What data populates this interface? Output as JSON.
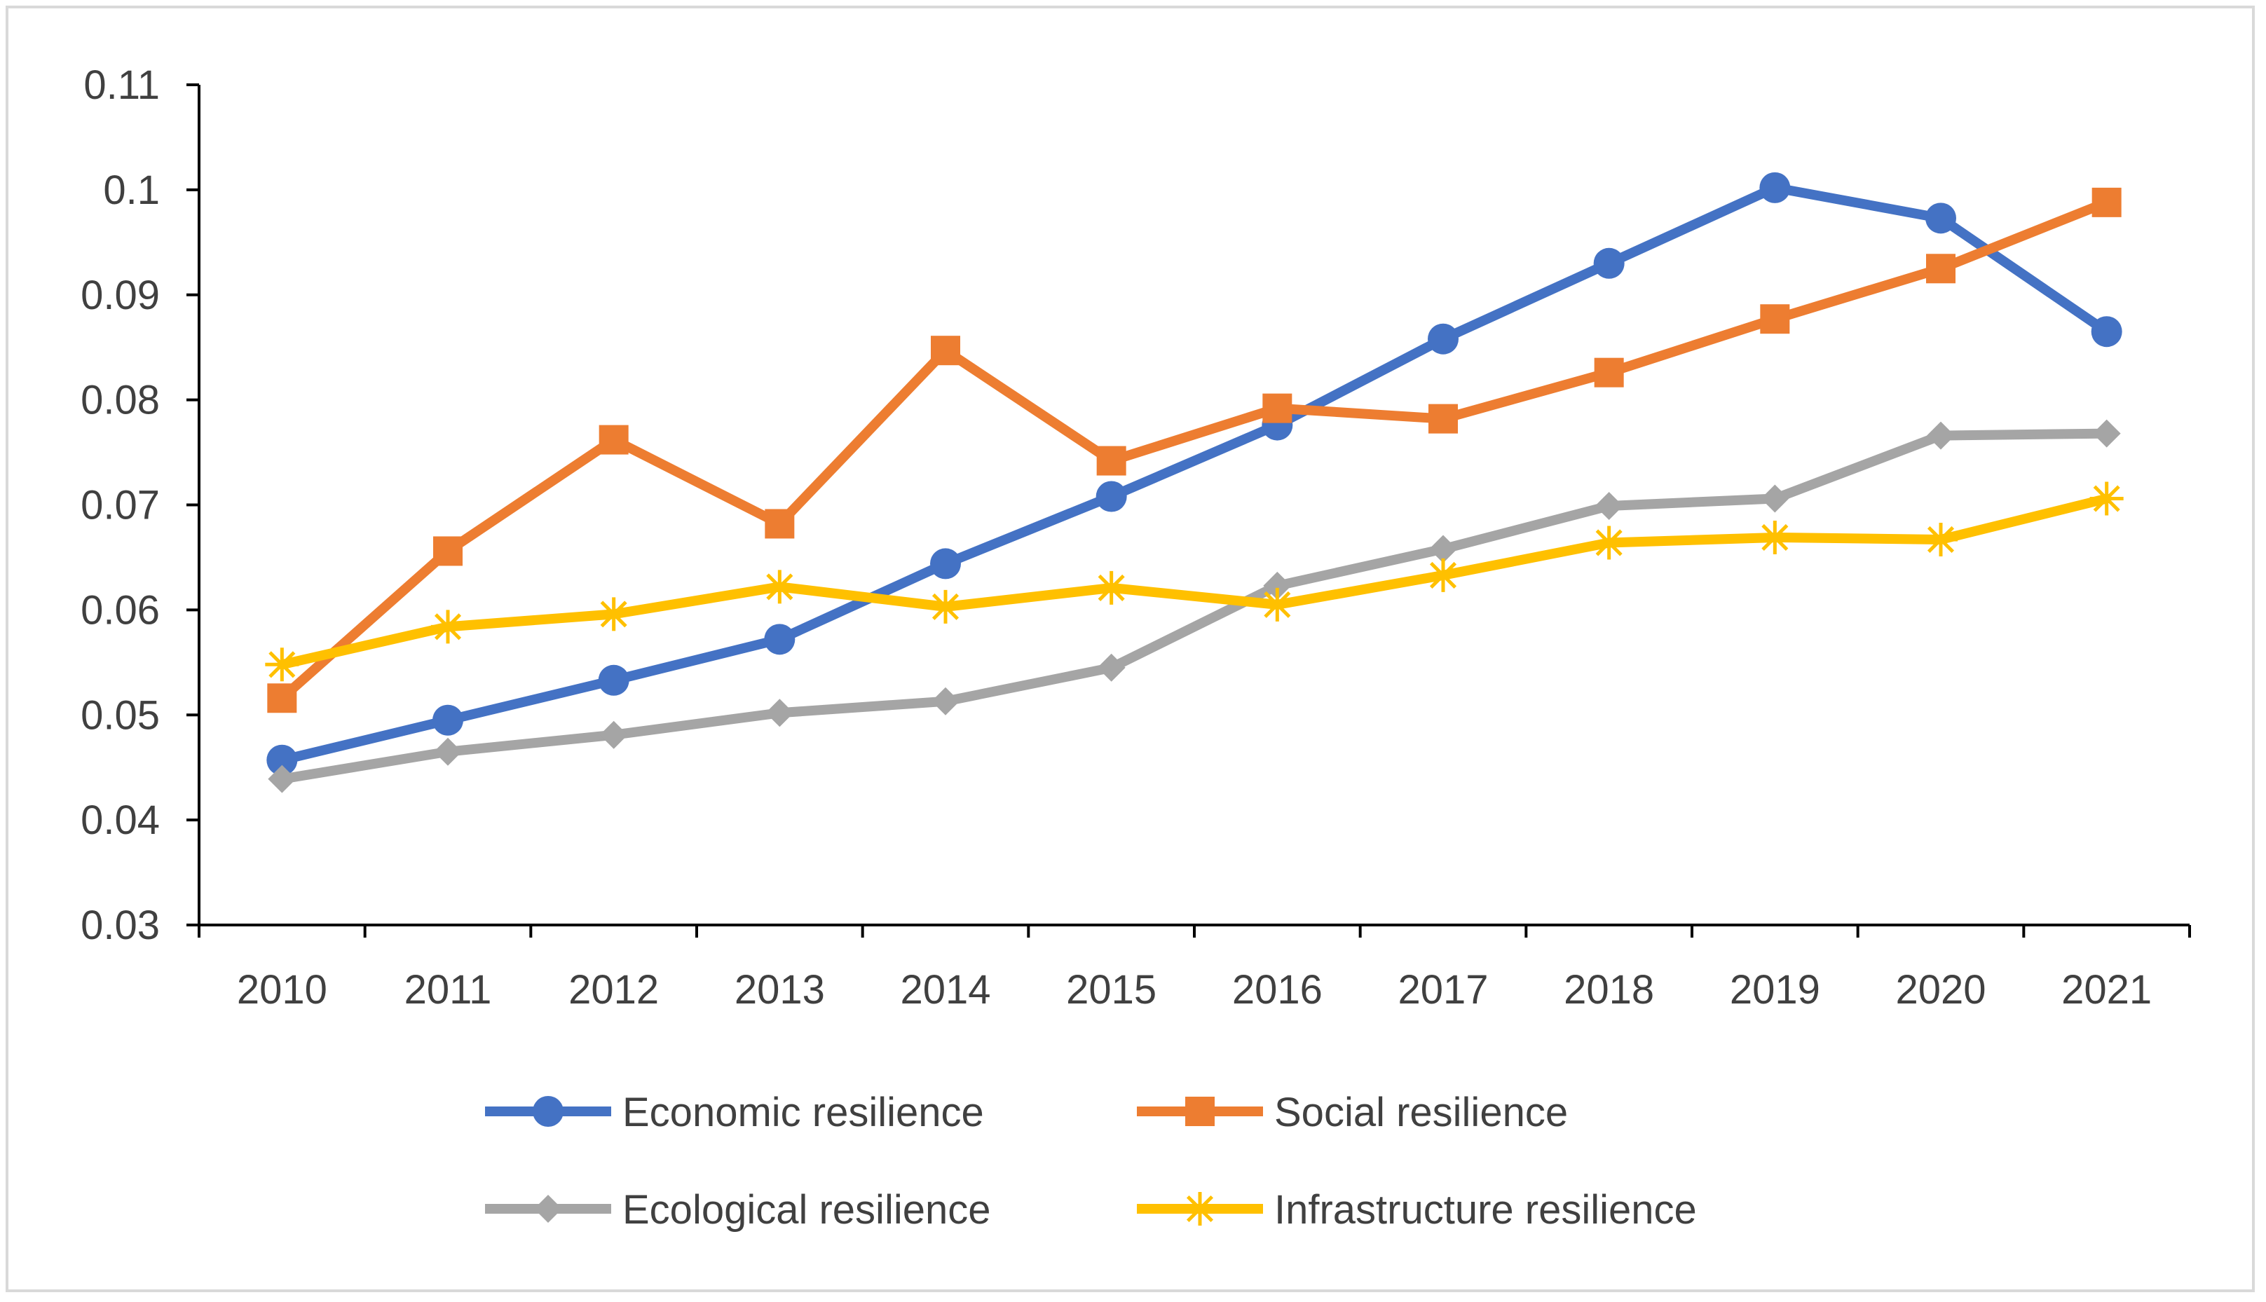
{
  "chart_data": {
    "type": "line",
    "title": "",
    "xlabel": "",
    "ylabel": "",
    "x": [
      "2010",
      "2011",
      "2012",
      "2013",
      "2014",
      "2015",
      "2016",
      "2017",
      "2018",
      "2019",
      "2020",
      "2021"
    ],
    "y_ticks": [
      "0.03",
      "0.04",
      "0.05",
      "0.06",
      "0.07",
      "0.08",
      "0.09",
      "0.1",
      "0.11"
    ],
    "ylim": [
      0.03,
      0.11
    ],
    "grid": false,
    "legend_position": "bottom",
    "series": [
      {
        "name": "Economic resilience",
        "color": "#4472c4",
        "marker": "circle",
        "values": [
          0.0457,
          0.0495,
          0.0533,
          0.0572,
          0.0644,
          0.0708,
          0.0776,
          0.0858,
          0.093,
          0.1002,
          0.0973,
          0.0865
        ]
      },
      {
        "name": "Social resilience",
        "color": "#ed7d31",
        "marker": "square",
        "values": [
          0.0516,
          0.0656,
          0.0762,
          0.0682,
          0.0847,
          0.0742,
          0.0792,
          0.0782,
          0.0826,
          0.0877,
          0.0925,
          0.0988
        ]
      },
      {
        "name": "Ecological resilience",
        "color": "#a5a5a5",
        "marker": "diamond",
        "values": [
          0.0439,
          0.0465,
          0.0481,
          0.0502,
          0.0513,
          0.0545,
          0.0623,
          0.0658,
          0.0699,
          0.0706,
          0.0766,
          0.0768
        ]
      },
      {
        "name": "Infrastructure resilience",
        "color": "#ffc000",
        "marker": "star",
        "values": [
          0.0548,
          0.0584,
          0.0596,
          0.0622,
          0.0603,
          0.0621,
          0.0605,
          0.0633,
          0.0664,
          0.0669,
          0.0667,
          0.0706
        ]
      }
    ]
  }
}
